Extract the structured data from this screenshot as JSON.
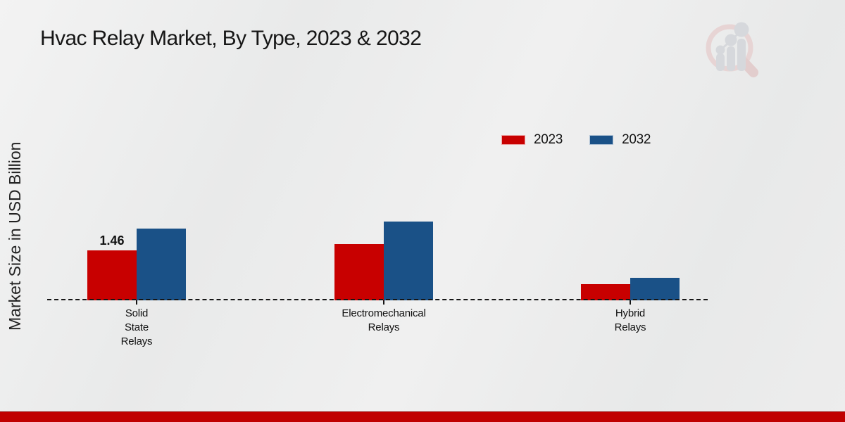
{
  "header": {
    "title": "Hvac Relay Market, By Type, 2023 & 2032"
  },
  "watermark": {
    "name": "mrfr-magnifier-logo"
  },
  "footer": {
    "accent_color": "#c00000"
  },
  "chart_data": {
    "type": "bar",
    "title": "Hvac Relay Market, By Type, 2023 & 2032",
    "xlabel": "",
    "ylabel": "Market Size in USD Billion",
    "categories": [
      "Solid State Relays",
      "Electromechanical Relays",
      "Hybrid Relays"
    ],
    "category_label_lines": [
      [
        "Solid",
        "State",
        "Relays"
      ],
      [
        "Electromechanical",
        "Relays"
      ],
      [
        "Hybrid",
        "Relays"
      ]
    ],
    "series": [
      {
        "name": "2023",
        "color": "#c80000",
        "values": [
          1.46,
          1.65,
          0.47
        ]
      },
      {
        "name": "2032",
        "color": "#1a5187",
        "values": [
          2.1,
          2.3,
          0.66
        ]
      }
    ],
    "bar_labels": [
      {
        "series_index": 0,
        "category_index": 0,
        "text": "1.46"
      }
    ],
    "ylim": [
      0,
      3
    ],
    "grid": false,
    "y_ticks_visible": false,
    "baseline_style": "dashed",
    "legend_position": "upper-right-inside"
  }
}
